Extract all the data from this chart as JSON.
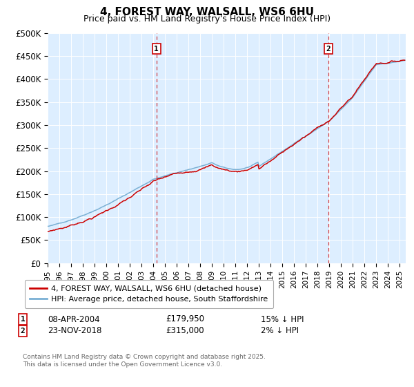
{
  "title1": "4, FOREST WAY, WALSALL, WS6 6HU",
  "title2": "Price paid vs. HM Land Registry's House Price Index (HPI)",
  "legend_line1": "4, FOREST WAY, WALSALL, WS6 6HU (detached house)",
  "legend_line2": "HPI: Average price, detached house, South Staffordshire",
  "footer": "Contains HM Land Registry data © Crown copyright and database right 2025.\nThis data is licensed under the Open Government Licence v3.0.",
  "annotation1": {
    "label": "1",
    "date": "08-APR-2004",
    "price": "£179,950",
    "note": "15% ↓ HPI"
  },
  "annotation2": {
    "label": "2",
    "date": "23-NOV-2018",
    "price": "£315,000",
    "note": "2% ↓ HPI"
  },
  "xmin": 1995.0,
  "xmax": 2025.5,
  "ymin": 0,
  "ymax": 500000,
  "yticks": [
    0,
    50000,
    100000,
    150000,
    200000,
    250000,
    300000,
    350000,
    400000,
    450000,
    500000
  ],
  "ytick_labels": [
    "£0",
    "£50K",
    "£100K",
    "£150K",
    "£200K",
    "£250K",
    "£300K",
    "£350K",
    "£400K",
    "£450K",
    "£500K"
  ],
  "marker1_x": 2004.27,
  "marker1_y": 179950,
  "marker2_x": 2018.9,
  "marker2_y": 315000,
  "red_color": "#cc0000",
  "blue_color": "#7ab0d4",
  "bg_color": "#ddeeff",
  "plot_bg": "#ddeeff"
}
